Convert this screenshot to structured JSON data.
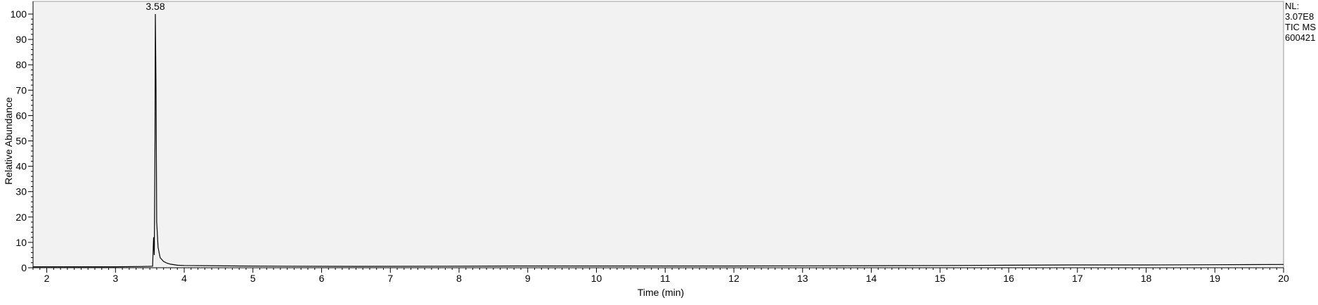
{
  "chart_data": {
    "type": "line",
    "xlabel": "Time (min)",
    "ylabel": "Relative Abundance",
    "xlim": [
      1.8,
      20
    ],
    "ylim": [
      0,
      100
    ],
    "x_ticks": [
      2,
      3,
      4,
      5,
      6,
      7,
      8,
      9,
      10,
      11,
      12,
      13,
      14,
      15,
      16,
      17,
      18,
      19,
      20
    ],
    "y_ticks": [
      0,
      10,
      20,
      30,
      40,
      50,
      60,
      70,
      80,
      90,
      100
    ],
    "grid": false,
    "background": "#f2f2f2",
    "line_color": "#000000",
    "peaks": [
      {
        "x": 3.58,
        "y": 100,
        "label": "3.58"
      }
    ],
    "series": [
      {
        "points": [
          [
            1.8,
            0.4
          ],
          [
            2.5,
            0.4
          ],
          [
            3.0,
            0.4
          ],
          [
            3.4,
            0.5
          ],
          [
            3.54,
            0.6
          ],
          [
            3.555,
            12
          ],
          [
            3.565,
            5
          ],
          [
            3.575,
            50
          ],
          [
            3.58,
            100
          ],
          [
            3.59,
            70
          ],
          [
            3.6,
            18
          ],
          [
            3.62,
            8
          ],
          [
            3.65,
            4
          ],
          [
            3.7,
            2.5
          ],
          [
            3.75,
            1.8
          ],
          [
            3.8,
            1.4
          ],
          [
            3.9,
            1.0
          ],
          [
            4.0,
            0.9
          ],
          [
            4.4,
            0.8
          ],
          [
            4.8,
            0.7
          ],
          [
            5.5,
            0.6
          ],
          [
            6.5,
            0.55
          ],
          [
            7.8,
            0.6
          ],
          [
            8.8,
            0.7
          ],
          [
            10,
            0.7
          ],
          [
            12,
            0.7
          ],
          [
            14,
            0.8
          ],
          [
            15,
            0.9
          ],
          [
            16,
            1.0
          ],
          [
            17,
            1.1
          ],
          [
            18,
            1.1
          ],
          [
            19,
            1.2
          ],
          [
            20,
            1.3
          ]
        ]
      }
    ]
  },
  "info": {
    "lines": [
      "NL:",
      "3.07E8",
      "TIC  MS",
      "600421"
    ]
  }
}
